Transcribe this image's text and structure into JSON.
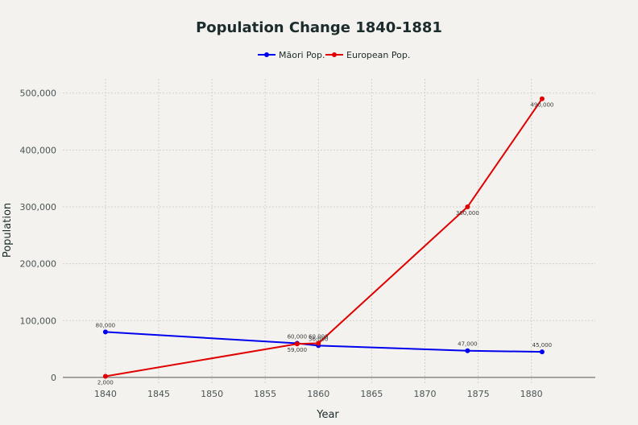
{
  "chart_data": {
    "type": "line",
    "title": "Population Change 1840-1881",
    "xlabel": "Year",
    "ylabel": "Population",
    "xlim": [
      1836,
      1886
    ],
    "ylim": [
      -10000,
      525000
    ],
    "xticks": [
      1840,
      1845,
      1850,
      1855,
      1860,
      1865,
      1870,
      1875,
      1880
    ],
    "yticks": [
      0,
      100000,
      200000,
      300000,
      400000,
      500000
    ],
    "ytick_labels": [
      "0",
      "100,000",
      "200,000",
      "300,000",
      "400,000",
      "500,000"
    ],
    "grid": true,
    "legend_position": "top-center",
    "series": [
      {
        "name": "Māori Pop.",
        "color": "#0000ee",
        "x": [
          1840,
          1858,
          1860,
          1874,
          1881
        ],
        "values": [
          80000,
          60000,
          56000,
          47000,
          45000
        ],
        "labels": [
          "80,000",
          "60,000",
          "56,000",
          "47,000",
          "45,000"
        ]
      },
      {
        "name": "European Pop.",
        "color": "#e00000",
        "x": [
          1840,
          1858,
          1860,
          1874,
          1881
        ],
        "values": [
          2000,
          59000,
          60000,
          300000,
          490000
        ],
        "labels": [
          "2,000",
          "59,000",
          "60,000",
          "300,000",
          "490,000"
        ]
      }
    ]
  }
}
